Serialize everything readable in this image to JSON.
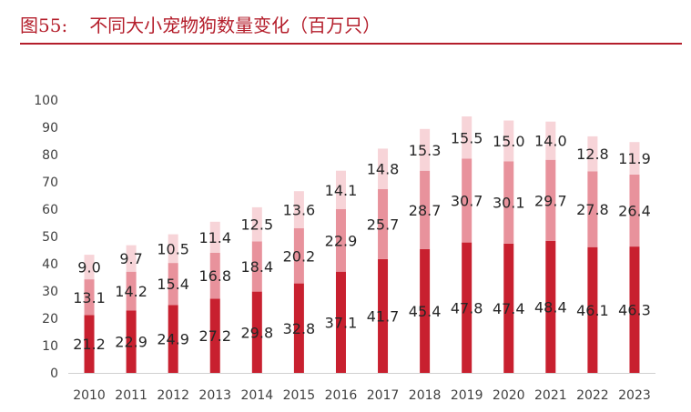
{
  "header": {
    "figure_label": "图55:",
    "title": "不同大小宠物狗数量变化（百万只）"
  },
  "colors": {
    "title": "#b41e2b",
    "series": [
      "#c8202f",
      "#e8929c",
      "#f7d4d8"
    ]
  },
  "chart_data": {
    "type": "bar",
    "stacked": true,
    "title": "不同大小宠物狗数量变化（百万只）",
    "xlabel": "",
    "ylabel": "",
    "ylim": [
      0,
      100
    ],
    "yticks": [
      0,
      10,
      20,
      30,
      40,
      50,
      60,
      70,
      80,
      90,
      100
    ],
    "grid": false,
    "legend": "none",
    "categories": [
      "2010",
      "2011",
      "2012",
      "2013",
      "2014",
      "2015",
      "2016",
      "2017",
      "2018",
      "2019",
      "2020",
      "2021",
      "2022",
      "2023"
    ],
    "series": [
      {
        "values": [
          21.2,
          22.9,
          24.9,
          27.2,
          29.8,
          32.8,
          37.1,
          41.7,
          45.4,
          47.8,
          47.4,
          48.4,
          46.1,
          46.3
        ],
        "color": "#c8202f"
      },
      {
        "values": [
          13.1,
          14.2,
          15.4,
          16.8,
          18.4,
          20.2,
          22.9,
          25.7,
          28.7,
          30.7,
          30.1,
          29.7,
          27.8,
          26.4
        ],
        "color": "#e8929c"
      },
      {
        "values": [
          9.0,
          9.7,
          10.5,
          11.4,
          12.5,
          13.6,
          14.1,
          14.8,
          15.3,
          15.5,
          15.0,
          14.0,
          12.8,
          11.9
        ],
        "color": "#f7d4d8"
      }
    ]
  }
}
